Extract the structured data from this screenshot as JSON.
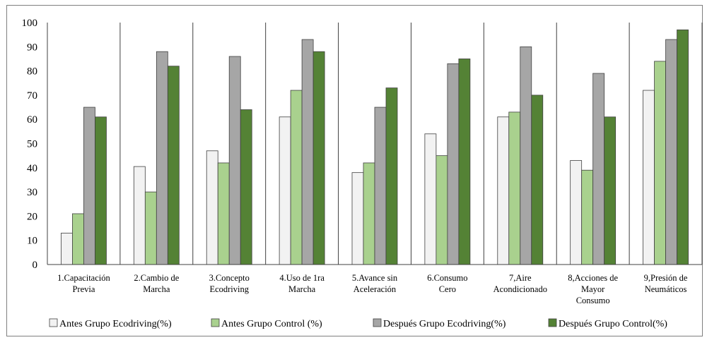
{
  "chart_data": {
    "type": "bar",
    "title": "",
    "xlabel": "",
    "ylabel": "",
    "ylim": [
      0,
      100
    ],
    "yticks": [
      0,
      10,
      20,
      30,
      40,
      50,
      60,
      70,
      80,
      90,
      100
    ],
    "grid": false,
    "legend_position": "bottom",
    "categories": [
      [
        "1.Capacitación",
        "Previa"
      ],
      [
        "2.Cambio de",
        "Marcha"
      ],
      [
        "3.Concepto",
        "Ecodriving"
      ],
      [
        "4.Uso de 1ra",
        "Marcha"
      ],
      [
        "5.Avance sin",
        "Aceleración"
      ],
      [
        "6.Consumo",
        "Cero"
      ],
      [
        "7,Aire",
        "Acondicionado"
      ],
      [
        "8,Acciones de",
        "Mayor",
        "Consumo"
      ],
      [
        "9,Presión de",
        "Neumáticos"
      ]
    ],
    "series": [
      {
        "name": "Antes Grupo Ecodriving(%)",
        "color": "#f2f2f2",
        "values": [
          13,
          40.5,
          47,
          61,
          38,
          54,
          61,
          43,
          72
        ]
      },
      {
        "name": "Antes Grupo Control (%)",
        "color": "#a9d18e",
        "values": [
          21,
          30,
          42,
          72,
          42,
          45,
          63,
          39,
          84
        ]
      },
      {
        "name": "Después Grupo Ecodriving(%)",
        "color": "#a6a6a6",
        "values": [
          65,
          88,
          86,
          93,
          65,
          83,
          90,
          79,
          93
        ]
      },
      {
        "name": "Después Grupo Control(%)",
        "color": "#548235",
        "values": [
          61,
          82,
          64,
          88,
          73,
          85,
          70,
          61,
          97
        ]
      }
    ]
  }
}
